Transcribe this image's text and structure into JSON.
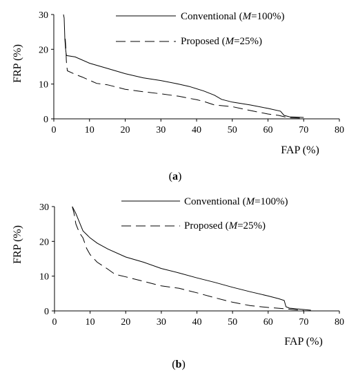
{
  "chart_data": [
    {
      "type": "line",
      "caption": "(a)",
      "xlabel": "FAP (%)",
      "ylabel": "FRP (%)",
      "xlim": [
        0,
        80
      ],
      "ylim": [
        0,
        30
      ],
      "xticks": [
        "0",
        "10",
        "20",
        "30",
        "40",
        "50",
        "60",
        "70",
        "80"
      ],
      "yticks": [
        "0",
        "10",
        "20",
        "30"
      ],
      "legend_position": "top-right",
      "series": [
        {
          "name": "Conventional (M=100%)",
          "name_parts": [
            "Conventional (",
            "M",
            "=100%)"
          ],
          "style": "solid",
          "x": [
            2.7,
            2.9,
            3.1,
            3.3,
            3.5,
            3.6,
            6,
            10,
            15,
            20,
            25,
            30,
            35,
            38,
            42,
            45,
            47,
            50,
            55,
            60,
            63.5,
            64.5,
            66,
            68,
            70
          ],
          "y": [
            30,
            29,
            23,
            20,
            18.5,
            18.2,
            17.8,
            16,
            14.5,
            13,
            11.8,
            11,
            10,
            9.3,
            8,
            6.8,
            5.6,
            4.8,
            4,
            3,
            2.2,
            1.0,
            0.6,
            0.5,
            0.4
          ]
        },
        {
          "name": "Proposed (M=25%)",
          "name_parts": [
            "Proposed (",
            "M",
            "=25%)"
          ],
          "style": "dashed",
          "x": [
            3.2,
            3.4,
            3.5,
            3.6,
            3.8,
            6,
            8,
            12,
            15,
            20,
            25,
            30,
            35,
            40,
            42,
            45,
            50,
            55,
            60,
            63,
            65,
            66,
            70
          ],
          "y": [
            23,
            20,
            17,
            15.5,
            13.8,
            12.8,
            12,
            10.2,
            9.8,
            8.5,
            7.8,
            7.2,
            6.5,
            5.5,
            5,
            4.0,
            3.5,
            2.4,
            1.4,
            1.0,
            0.5,
            0.3,
            0.2
          ]
        }
      ]
    },
    {
      "type": "line",
      "caption": "(b)",
      "xlabel": "FAP (%)",
      "ylabel": "FRP (%)",
      "xlim": [
        0,
        80
      ],
      "ylim": [
        0,
        30
      ],
      "xticks": [
        "0",
        "10",
        "20",
        "30",
        "40",
        "50",
        "60",
        "70",
        "80"
      ],
      "yticks": [
        "0",
        "10",
        "20",
        "30"
      ],
      "legend_position": "top-right",
      "series": [
        {
          "name": "Conventional (M=100%)",
          "name_parts": [
            "Conventional (",
            "M",
            "=100%)"
          ],
          "style": "solid",
          "x": [
            5,
            5.5,
            6,
            7,
            8,
            10,
            12,
            15,
            20,
            25,
            30,
            35,
            40,
            45,
            50,
            55,
            60,
            63,
            64.5,
            65,
            66,
            70,
            72
          ],
          "y": [
            30,
            29,
            28,
            25.5,
            23,
            21,
            19.5,
            17.8,
            15.5,
            14,
            12.2,
            10.9,
            9.5,
            8.2,
            6.8,
            5.5,
            4.3,
            3.5,
            3.0,
            1.2,
            0.8,
            0.4,
            0.2
          ]
        },
        {
          "name": "Proposed (M=25%)",
          "name_parts": [
            "Proposed (",
            "M",
            "=25%)"
          ],
          "style": "dashed",
          "x": [
            5,
            5.5,
            6,
            7,
            8,
            9,
            10,
            12,
            15,
            17,
            20,
            25,
            30,
            35,
            40,
            45,
            50,
            55,
            60,
            65,
            68,
            70
          ],
          "y": [
            30,
            28,
            25,
            22.5,
            21,
            18,
            16.2,
            14,
            12,
            10.5,
            9.8,
            8.5,
            7.2,
            6.5,
            5.2,
            3.8,
            2.5,
            1.5,
            1.0,
            0.6,
            0.3,
            0.1
          ]
        }
      ]
    }
  ]
}
